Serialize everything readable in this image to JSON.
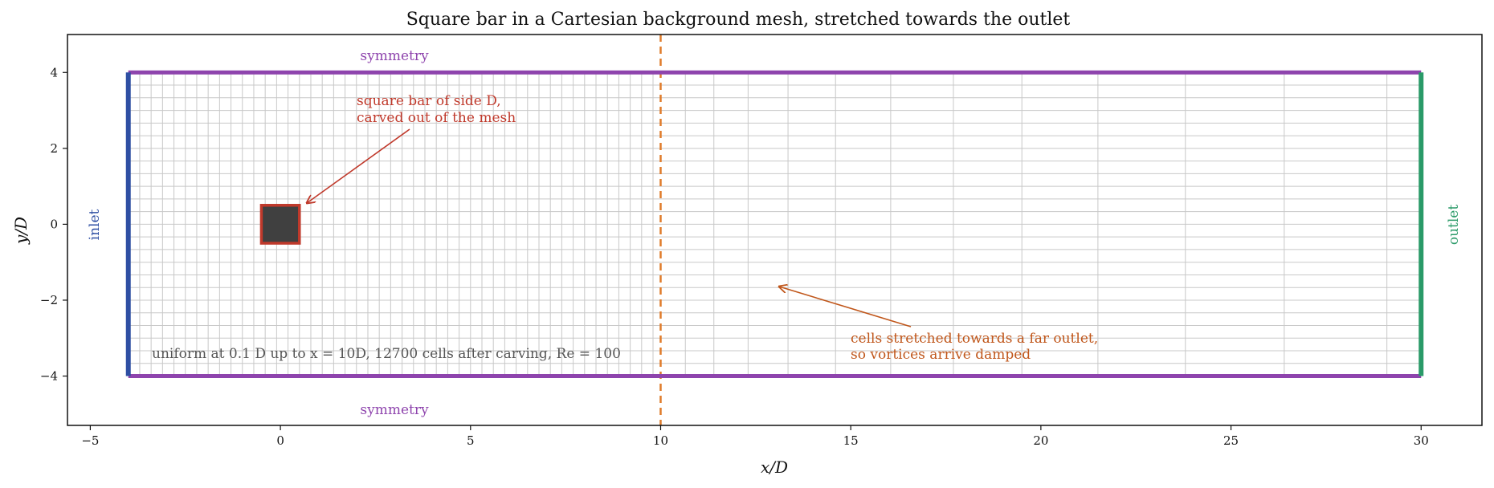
{
  "figure": {
    "title": "Square bar in a Cartesian background mesh, stretched towards the outlet",
    "xlabel": "x/D",
    "ylabel": "y/D",
    "xlim": [
      -5.6,
      31.6
    ],
    "ylim": [
      -5.3,
      5.0
    ],
    "xticks": [
      {
        "value": -5,
        "label": "−5"
      },
      {
        "value": 0,
        "label": "0"
      },
      {
        "value": 5,
        "label": "5"
      },
      {
        "value": 10,
        "label": "10"
      },
      {
        "value": 15,
        "label": "15"
      },
      {
        "value": 20,
        "label": "20"
      },
      {
        "value": 25,
        "label": "25"
      },
      {
        "value": 30,
        "label": "30"
      }
    ],
    "yticks": [
      {
        "value": 4,
        "label": "4"
      },
      {
        "value": 2,
        "label": "2"
      },
      {
        "value": 0,
        "label": "0"
      },
      {
        "value": -2,
        "label": "−2"
      },
      {
        "value": -4,
        "label": "−4"
      }
    ]
  },
  "domain": {
    "x_min": -4,
    "x_max": 30,
    "y_min": -4,
    "y_max": 4,
    "uniform_spacing": 0.1,
    "uniform_until_x": 10,
    "y_line_count": 24,
    "stretched_x_lines": [
      10.65,
      11.4,
      12.3,
      13.35,
      14.6,
      16.05,
      17.7,
      19.5,
      21.5,
      23.8,
      26.4,
      29.1
    ]
  },
  "obstacle": {
    "x": [
      -0.5,
      0.5
    ],
    "y": [
      -0.5,
      0.5
    ],
    "fill": "#404040",
    "edge": "#c0392b"
  },
  "boundaries": {
    "top_label": "symmetry",
    "bottom_label": "symmetry",
    "inlet_label": "inlet",
    "outlet_label": "outlet",
    "symmetry_color": "#8e44ad",
    "inlet_color": "#2e4fa3",
    "outlet_color": "#2a9a68"
  },
  "refinement_line": {
    "x": 10,
    "color": "#e07b2a"
  },
  "annotations": {
    "bar_line1": "square bar of side D,",
    "bar_line2": "carved out of the mesh",
    "bar_color": "#c0392b",
    "stretch_line1": "cells stretched towards a far outlet,",
    "stretch_line2": "so vortices arrive damped",
    "stretch_color": "#c0561a",
    "info": "uniform at 0.1 D up to x = 10D, 12700 cells after carving, Re = 100",
    "info_color": "#555555"
  }
}
